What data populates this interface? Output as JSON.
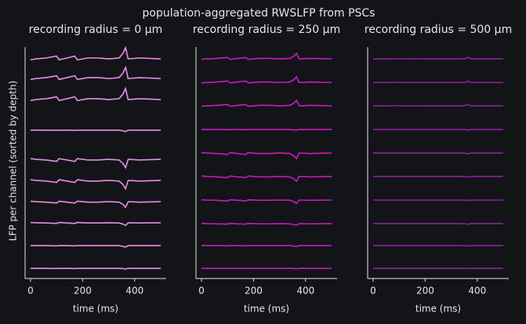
{
  "figure": {
    "title": "population-aggregated RWSLFP from PSCs",
    "y_label": "LFP per channel (sorted by depth)"
  },
  "chart_data": [
    {
      "type": "line",
      "title": "recording radius = 0 μm",
      "x_label": "time (ms)",
      "color": "#e58fe5",
      "xlim": [
        -21,
        521
      ],
      "xticks": [
        0,
        200,
        400
      ],
      "ylim": [
        0,
        10
      ],
      "x": [
        0,
        20,
        60,
        100,
        110,
        140,
        170,
        180,
        220,
        260,
        300,
        340,
        355,
        365,
        375,
        420,
        500
      ],
      "series": [
        {
          "values": [
            9.45,
            9.49,
            9.53,
            9.61,
            9.45,
            9.53,
            9.61,
            9.45,
            9.53,
            9.53,
            9.49,
            9.53,
            9.73,
            9.97,
            9.49,
            9.53,
            9.49
          ]
        },
        {
          "values": [
            8.6,
            8.64,
            8.68,
            8.76,
            8.6,
            8.68,
            8.76,
            8.6,
            8.68,
            8.68,
            8.64,
            8.68,
            8.88,
            9.12,
            8.64,
            8.68,
            8.64
          ]
        },
        {
          "values": [
            7.69,
            7.73,
            7.77,
            7.85,
            7.69,
            7.77,
            7.85,
            7.69,
            7.77,
            7.77,
            7.73,
            7.77,
            7.97,
            8.21,
            7.73,
            7.77,
            7.73
          ]
        },
        {
          "values": [
            6.41,
            6.41,
            6.41,
            6.4,
            6.41,
            6.41,
            6.4,
            6.41,
            6.41,
            6.41,
            6.41,
            6.41,
            6.38,
            6.35,
            6.41,
            6.41,
            6.41
          ]
        },
        {
          "values": [
            5.18,
            5.15,
            5.12,
            5.06,
            5.18,
            5.12,
            5.06,
            5.18,
            5.12,
            5.12,
            5.15,
            5.12,
            4.97,
            4.79,
            5.15,
            5.12,
            5.15
          ]
        },
        {
          "values": [
            4.27,
            4.24,
            4.21,
            4.15,
            4.27,
            4.21,
            4.15,
            4.27,
            4.21,
            4.21,
            4.24,
            4.21,
            4.06,
            3.88,
            4.24,
            4.21,
            4.24
          ]
        },
        {
          "values": [
            3.34,
            3.32,
            3.3,
            3.26,
            3.34,
            3.3,
            3.26,
            3.34,
            3.3,
            3.3,
            3.32,
            3.3,
            3.2,
            3.08,
            3.32,
            3.3,
            3.32
          ]
        },
        {
          "values": [
            2.42,
            2.41,
            2.4,
            2.38,
            2.42,
            2.4,
            2.38,
            2.42,
            2.4,
            2.4,
            2.41,
            2.4,
            2.35,
            2.29,
            2.41,
            2.4,
            2.41
          ]
        },
        {
          "values": [
            1.42,
            1.42,
            1.42,
            1.41,
            1.42,
            1.42,
            1.41,
            1.42,
            1.42,
            1.42,
            1.42,
            1.42,
            1.39,
            1.36,
            1.42,
            1.42,
            1.42
          ]
        },
        {
          "values": [
            0.44,
            0.44,
            0.44,
            0.43,
            0.44,
            0.44,
            0.43,
            0.44,
            0.44,
            0.44,
            0.44,
            0.44,
            0.43,
            0.41,
            0.44,
            0.44,
            0.44
          ]
        }
      ]
    },
    {
      "type": "line",
      "title": "recording radius = 250 μm",
      "x_label": "time (ms)",
      "color": "#c61bc6",
      "xlim": [
        -21,
        521
      ],
      "xticks": [
        0,
        200,
        400
      ],
      "ylim": [
        0,
        10
      ],
      "x": [
        0,
        20,
        60,
        100,
        110,
        140,
        170,
        180,
        220,
        260,
        300,
        340,
        355,
        365,
        375,
        420,
        500
      ],
      "series": [
        {
          "values": [
            9.47,
            9.49,
            9.51,
            9.55,
            9.47,
            9.51,
            9.55,
            9.47,
            9.51,
            9.51,
            9.49,
            9.51,
            9.61,
            9.73,
            9.49,
            9.51,
            9.49
          ]
        },
        {
          "values": [
            8.45,
            8.47,
            8.49,
            8.53,
            8.45,
            8.49,
            8.53,
            8.45,
            8.49,
            8.49,
            8.47,
            8.49,
            8.59,
            8.71,
            8.47,
            8.49,
            8.47
          ]
        },
        {
          "values": [
            7.44,
            7.46,
            7.48,
            7.52,
            7.44,
            7.48,
            7.52,
            7.44,
            7.48,
            7.48,
            7.46,
            7.48,
            7.58,
            7.7,
            7.46,
            7.48,
            7.46
          ]
        },
        {
          "values": [
            6.44,
            6.44,
            6.44,
            6.43,
            6.44,
            6.44,
            6.43,
            6.44,
            6.44,
            6.44,
            6.44,
            6.44,
            6.42,
            6.41,
            6.44,
            6.44,
            6.44
          ]
        },
        {
          "values": [
            5.44,
            5.42,
            5.4,
            5.36,
            5.44,
            5.4,
            5.36,
            5.44,
            5.4,
            5.4,
            5.42,
            5.4,
            5.3,
            5.18,
            5.42,
            5.4,
            5.42
          ]
        },
        {
          "values": [
            4.43,
            4.41,
            4.39,
            4.36,
            4.43,
            4.39,
            4.36,
            4.43,
            4.39,
            4.39,
            4.41,
            4.39,
            4.31,
            4.2,
            4.41,
            4.39,
            4.41
          ]
        },
        {
          "values": [
            3.4,
            3.39,
            3.38,
            3.35,
            3.4,
            3.38,
            3.35,
            3.4,
            3.38,
            3.38,
            3.39,
            3.38,
            3.32,
            3.24,
            3.39,
            3.38,
            3.39
          ]
        },
        {
          "values": [
            2.38,
            2.37,
            2.36,
            2.35,
            2.38,
            2.36,
            2.35,
            2.38,
            2.36,
            2.36,
            2.37,
            2.36,
            2.33,
            2.3,
            2.37,
            2.36,
            2.37
          ]
        },
        {
          "values": [
            1.42,
            1.42,
            1.42,
            1.41,
            1.42,
            1.42,
            1.41,
            1.42,
            1.42,
            1.42,
            1.42,
            1.42,
            1.4,
            1.38,
            1.42,
            1.42,
            1.42
          ]
        },
        {
          "values": [
            0.44,
            0.44,
            0.44,
            0.44,
            0.44,
            0.44,
            0.44,
            0.44,
            0.44,
            0.44,
            0.44,
            0.44,
            0.43,
            0.42,
            0.44,
            0.44,
            0.44
          ]
        }
      ]
    },
    {
      "type": "line",
      "title": "recording radius = 500 μm",
      "x_label": "time (ms)",
      "color": "#8e1fa3",
      "xlim": [
        -21,
        521
      ],
      "xticks": [
        0,
        200,
        400
      ],
      "ylim": [
        0,
        10
      ],
      "x": [
        0,
        20,
        60,
        100,
        110,
        140,
        170,
        180,
        220,
        260,
        300,
        340,
        355,
        365,
        375,
        420,
        500
      ],
      "series": [
        {
          "values": [
            9.49,
            9.49,
            9.49,
            9.5,
            9.49,
            9.49,
            9.5,
            9.49,
            9.49,
            9.49,
            9.49,
            9.49,
            9.51,
            9.55,
            9.49,
            9.49,
            9.49
          ]
        },
        {
          "values": [
            8.47,
            8.47,
            8.47,
            8.48,
            8.47,
            8.47,
            8.48,
            8.47,
            8.47,
            8.47,
            8.47,
            8.47,
            8.49,
            8.53,
            8.47,
            8.47,
            8.47
          ]
        },
        {
          "values": [
            7.46,
            7.46,
            7.46,
            7.47,
            7.46,
            7.46,
            7.47,
            7.46,
            7.46,
            7.46,
            7.46,
            7.46,
            7.48,
            7.52,
            7.46,
            7.46,
            7.46
          ]
        },
        {
          "values": [
            6.44,
            6.44,
            6.44,
            6.44,
            6.44,
            6.44,
            6.44,
            6.44,
            6.44,
            6.44,
            6.44,
            6.44,
            6.43,
            6.42,
            6.44,
            6.44,
            6.44
          ]
        },
        {
          "values": [
            5.42,
            5.42,
            5.42,
            5.42,
            5.42,
            5.42,
            5.42,
            5.42,
            5.42,
            5.42,
            5.42,
            5.42,
            5.41,
            5.39,
            5.42,
            5.42,
            5.42
          ]
        },
        {
          "values": [
            4.41,
            4.41,
            4.41,
            4.41,
            4.41,
            4.41,
            4.41,
            4.41,
            4.41,
            4.41,
            4.41,
            4.41,
            4.4,
            4.38,
            4.41,
            4.41,
            4.41
          ]
        },
        {
          "values": [
            3.39,
            3.39,
            3.39,
            3.39,
            3.39,
            3.39,
            3.39,
            3.39,
            3.39,
            3.39,
            3.39,
            3.39,
            3.38,
            3.37,
            3.39,
            3.39,
            3.39
          ]
        },
        {
          "values": [
            2.37,
            2.37,
            2.37,
            2.37,
            2.37,
            2.37,
            2.37,
            2.37,
            2.37,
            2.37,
            2.37,
            2.37,
            2.36,
            2.35,
            2.37,
            2.37,
            2.37
          ]
        },
        {
          "values": [
            1.42,
            1.42,
            1.42,
            1.42,
            1.42,
            1.42,
            1.42,
            1.42,
            1.42,
            1.42,
            1.42,
            1.42,
            1.41,
            1.41,
            1.42,
            1.42,
            1.42
          ]
        },
        {
          "values": [
            0.44,
            0.44,
            0.44,
            0.44,
            0.44,
            0.44,
            0.44,
            0.44,
            0.44,
            0.44,
            0.44,
            0.44,
            0.44,
            0.43,
            0.44,
            0.44,
            0.44
          ]
        }
      ]
    }
  ]
}
